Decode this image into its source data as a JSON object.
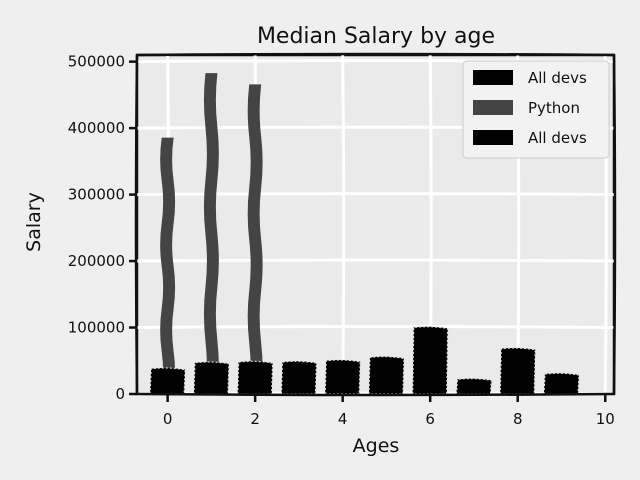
{
  "chart_data": {
    "type": "bar",
    "title": "Median Salary by age",
    "xlabel": "Ages",
    "ylabel": "Salary",
    "xlim": [
      -0.7,
      10.2
    ],
    "ylim": [
      0,
      510000
    ],
    "xticks": [
      0,
      2,
      4,
      6,
      8,
      10
    ],
    "yticks": [
      0,
      100000,
      200000,
      300000,
      400000,
      500000
    ],
    "xtick_labels": [
      "0",
      "2",
      "4",
      "6",
      "8",
      "10"
    ],
    "ytick_labels": [
      "0",
      "100000",
      "200000",
      "300000",
      "400000",
      "500000"
    ],
    "grid": true,
    "legend_position": "top-right",
    "series": [
      {
        "name": "All devs",
        "color": "#000000",
        "x": [
          0,
          1,
          2,
          3,
          4,
          5,
          6,
          7,
          8,
          9
        ],
        "values": [
          38000,
          47000,
          48000,
          48000,
          50000,
          55000,
          100000,
          22000,
          68000,
          30000
        ],
        "bar_width": 0.8
      },
      {
        "name": "Python",
        "color": "#444444",
        "x": [
          0,
          1,
          2
        ],
        "values": [
          385000,
          482000,
          465000
        ],
        "bar_width": 0.25
      },
      {
        "name": "All devs",
        "color": "#000000",
        "x": [
          0,
          1,
          2,
          3,
          4,
          5,
          6,
          7,
          8,
          9
        ],
        "values": [
          38000,
          47000,
          48000,
          48000,
          50000,
          55000,
          100000,
          22000,
          68000,
          30000
        ],
        "bar_width": 0.8
      }
    ]
  }
}
